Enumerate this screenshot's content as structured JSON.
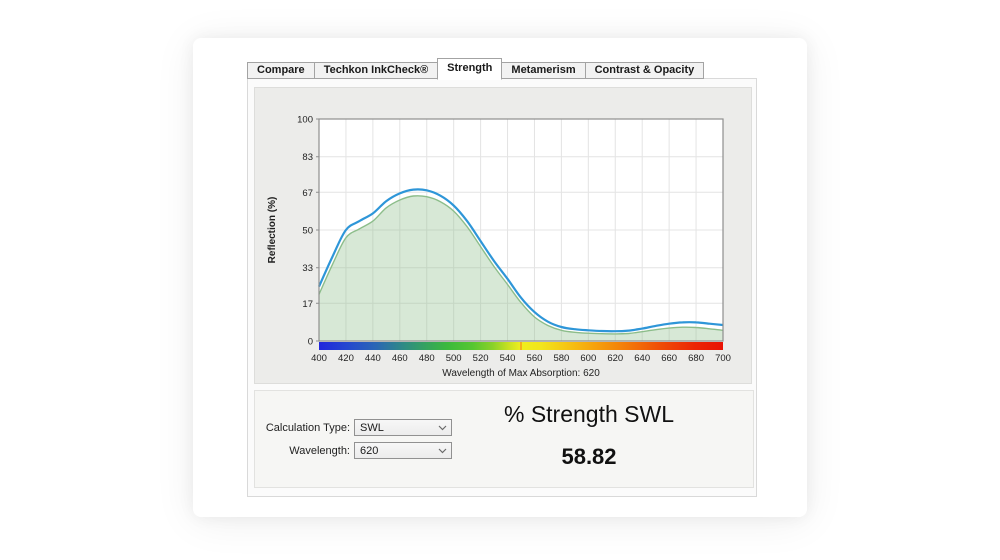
{
  "tabs": [
    {
      "label": "Compare",
      "active": false
    },
    {
      "label": "Techkon InkCheck®",
      "active": false
    },
    {
      "label": "Strength",
      "active": true
    },
    {
      "label": "Metamerism",
      "active": false
    },
    {
      "label": "Contrast & Opacity",
      "active": false
    }
  ],
  "controls": {
    "calculation_type_label": "Calculation Type:",
    "calculation_type_value": "SWL",
    "wavelength_label": "Wavelength:",
    "wavelength_value": "620"
  },
  "result": {
    "title": "% Strength SWL",
    "value": "58.82"
  },
  "chart_data": {
    "type": "area",
    "title": "",
    "ylabel": "Reflection (%)",
    "xlabel": "Wavelength of Max Absorption: 620",
    "xlim": [
      400,
      700
    ],
    "ylim": [
      0,
      100
    ],
    "xticks": [
      400,
      420,
      440,
      460,
      480,
      500,
      520,
      540,
      560,
      580,
      600,
      620,
      640,
      660,
      680,
      700
    ],
    "yticks": [
      0,
      17,
      33,
      50,
      67,
      83,
      100
    ],
    "grid": true,
    "grid_color": "#e4e4e4",
    "frame_color": "#8e8e8e",
    "x": [
      400,
      410,
      420,
      430,
      440,
      450,
      460,
      470,
      480,
      490,
      500,
      510,
      520,
      530,
      540,
      550,
      560,
      570,
      580,
      590,
      600,
      610,
      620,
      630,
      640,
      650,
      660,
      670,
      680,
      690,
      700
    ],
    "series": [
      {
        "name": "reference-area",
        "color": "#8cbd8a",
        "fill": "rgba(140,189,138,0.35)",
        "stroke_width": 1.4,
        "filled": true,
        "values": [
          21,
          34.5,
          46.5,
          50.5,
          54,
          60,
          63.5,
          65.3,
          65,
          62.8,
          58.5,
          51.5,
          42.5,
          33.5,
          25.5,
          17.3,
          10.8,
          7,
          4.8,
          3.9,
          3.5,
          3.3,
          3.2,
          3.4,
          4.2,
          5.1,
          5.8,
          6.2,
          6.1,
          5.5,
          4.8
        ]
      },
      {
        "name": "measurement-curve",
        "color": "#2e96d8",
        "stroke_width": 2.2,
        "filled": false,
        "values": [
          24.5,
          38,
          50,
          54,
          57.5,
          63,
          66.5,
          68.2,
          67.9,
          65.5,
          61,
          54,
          45,
          36,
          28,
          19.5,
          13,
          8.7,
          6.3,
          5.3,
          4.8,
          4.5,
          4.4,
          4.7,
          5.6,
          6.8,
          7.8,
          8.4,
          8.4,
          7.8,
          7.2
        ]
      }
    ],
    "spectrum_bar": {
      "height": 8,
      "marker_wavelength": 550,
      "marker_color": "#f5a11c",
      "stops": [
        {
          "offset": 0,
          "color": "#2126dd"
        },
        {
          "offset": 7,
          "color": "#2447cf"
        },
        {
          "offset": 14,
          "color": "#2a66b5"
        },
        {
          "offset": 21,
          "color": "#2f8b84"
        },
        {
          "offset": 27,
          "color": "#36a55b"
        },
        {
          "offset": 32,
          "color": "#3cba3c"
        },
        {
          "offset": 38,
          "color": "#56c632"
        },
        {
          "offset": 43,
          "color": "#8ad129"
        },
        {
          "offset": 47,
          "color": "#c9e122"
        },
        {
          "offset": 50,
          "color": "#efee1f"
        },
        {
          "offset": 55,
          "color": "#f2e51c"
        },
        {
          "offset": 61,
          "color": "#f5c715"
        },
        {
          "offset": 68,
          "color": "#f6a30e"
        },
        {
          "offset": 76,
          "color": "#f37b09"
        },
        {
          "offset": 85,
          "color": "#ef4a06"
        },
        {
          "offset": 93,
          "color": "#ec2505"
        },
        {
          "offset": 100,
          "color": "#e91204"
        }
      ]
    }
  }
}
